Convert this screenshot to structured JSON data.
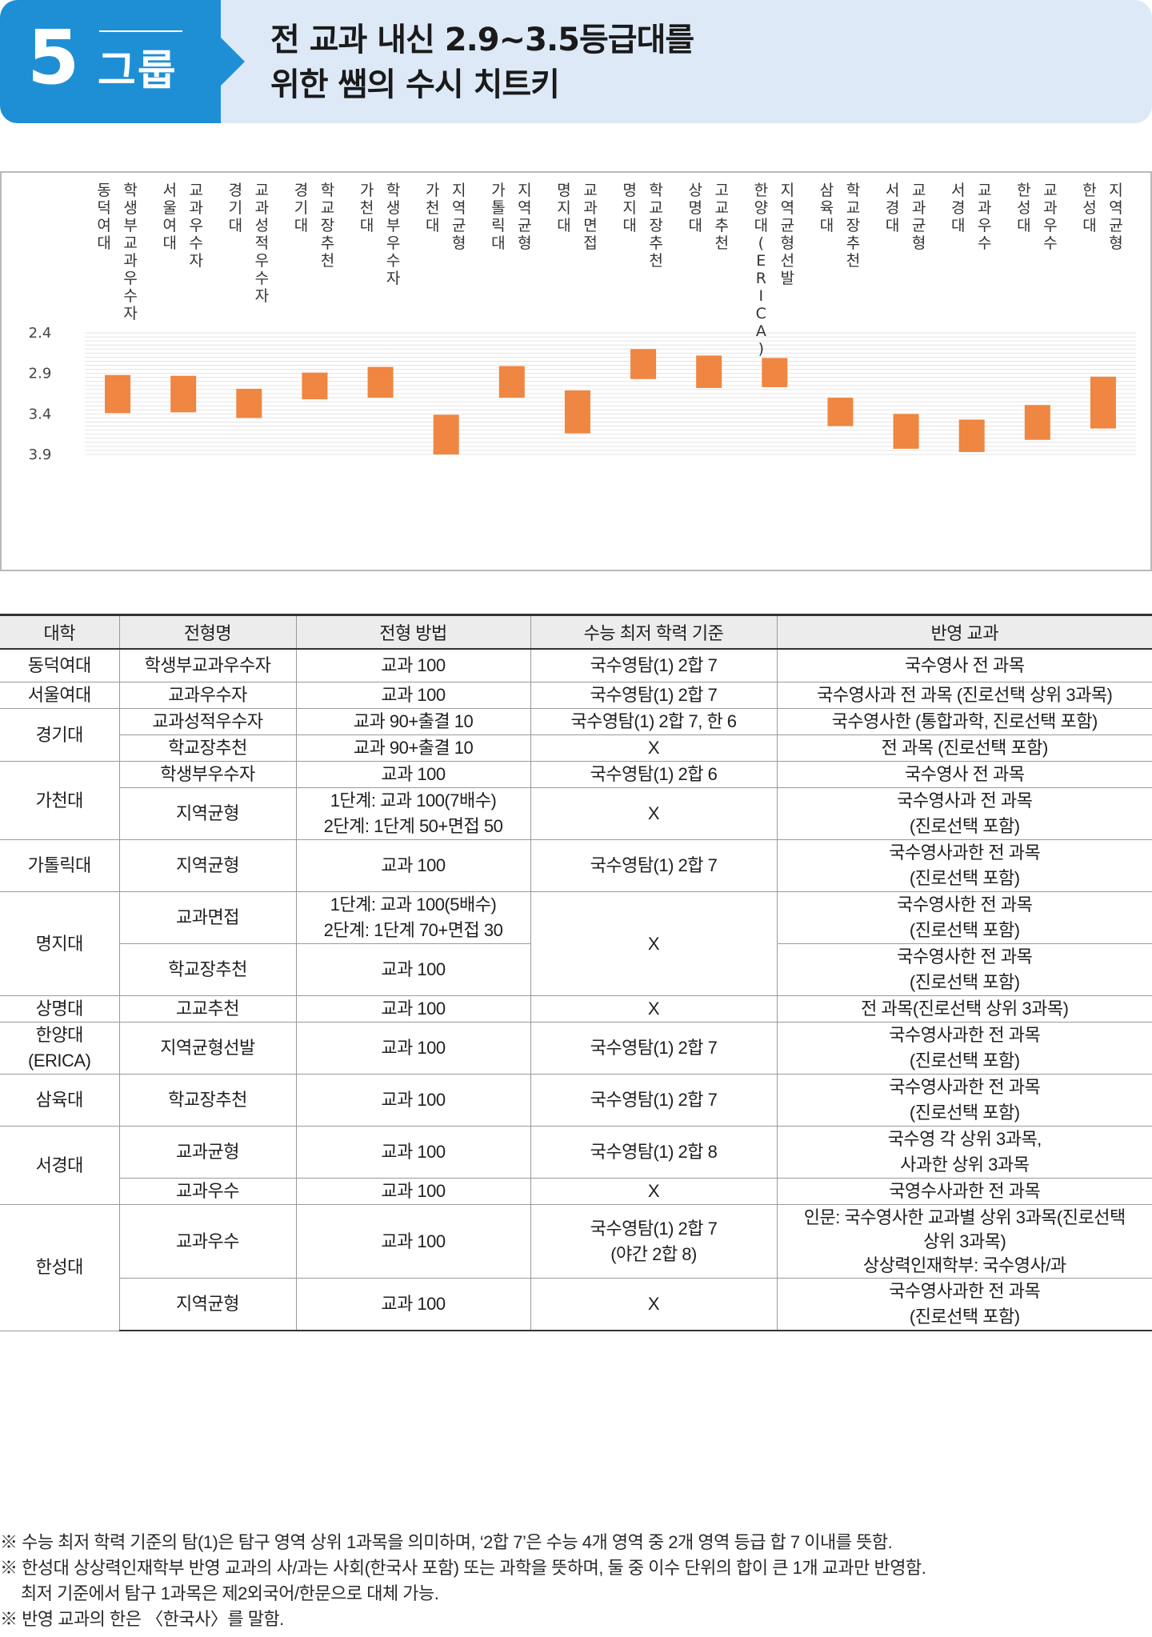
{
  "header": {
    "group_number": "5",
    "group_label": "그룹",
    "title_line1": "전 교과 내신 2.9~3.5등급대를",
    "title_line2": "위한 쌤의 수시 치트키"
  },
  "colors": {
    "accent": "#1f8fd5",
    "banner_bg": "#dde9f6",
    "bar": "#ef8641"
  },
  "chart_data": {
    "type": "bar",
    "subtype": "floating-range",
    "title": "",
    "xlabel": "",
    "ylabel": "",
    "y_inverted": true,
    "ylim": [
      2.4,
      3.9
    ],
    "yticks": [
      "2.4",
      "2.9",
      "3.4",
      "3.9"
    ],
    "grid": true,
    "categories": [
      "동덕여대 학생부교과우수자",
      "서울여대 교과우수자",
      "경기대 교과성적우수자",
      "경기대 학교장추천",
      "가천대 학생부우수자",
      "가천대 지역균형",
      "가톨릭대 지역균형",
      "명지대 교과면접",
      "명지대 학교장추천",
      "상명대 고교추천",
      "한양대(ERICA) 지역균형선발",
      "삼육대 학교장추천",
      "서경대 교과균형",
      "서경대 교과우수",
      "한성대 교과우수",
      "한성대 지역균형"
    ],
    "labels": [
      [
        "동덕여대",
        "학생부교과우수자"
      ],
      [
        "서울여대",
        "교과우수자"
      ],
      [
        "경기대",
        "교과성적우수자"
      ],
      [
        "경기대",
        "학교장추천"
      ],
      [
        "가천대",
        "학생부우수자"
      ],
      [
        "가천대",
        "지역균형"
      ],
      [
        "가톨릭대",
        "지역균형"
      ],
      [
        "명지대",
        "교과면접"
      ],
      [
        "명지대",
        "학교장추천"
      ],
      [
        "상명대",
        "고교추천"
      ],
      [
        "한양대(ERICA)",
        "지역균형선발"
      ],
      [
        "삼육대",
        "학교장추천"
      ],
      [
        "서경대",
        "교과균형"
      ],
      [
        "서경대",
        "교과우수"
      ],
      [
        "한성대",
        "교과우수"
      ],
      [
        "한성대",
        "지역균형"
      ]
    ],
    "series": [
      {
        "name": "min",
        "values": [
          2.92,
          2.93,
          3.09,
          2.89,
          2.82,
          3.41,
          2.81,
          3.11,
          2.6,
          2.68,
          2.71,
          3.2,
          3.4,
          3.47,
          3.29,
          2.94
        ]
      },
      {
        "name": "max",
        "values": [
          3.39,
          3.38,
          3.45,
          3.22,
          3.2,
          3.9,
          3.2,
          3.64,
          2.97,
          3.08,
          3.07,
          3.55,
          3.83,
          3.87,
          3.72,
          3.58
        ]
      }
    ]
  },
  "table": {
    "headers": [
      "대학",
      "전형명",
      "전형 방법",
      "수능 최저 학력 기준",
      "반영 교과"
    ],
    "rows": [
      [
        "동덕여대",
        "학생부교과우수자",
        "교과 100",
        "국수영탐(1) 2합 7",
        "국수영사 전 과목"
      ],
      [
        "서울여대",
        "교과우수자",
        "교과 100",
        "국수영탐(1) 2합 7",
        "국수영사과 전 과목 (진로선택 상위 3과목)"
      ],
      [
        "경기대",
        "교과성적우수자",
        "교과 90+출결 10",
        "국수영탐(1) 2합 7, 한 6",
        "국수영사한 (통합과학, 진로선택 포함)"
      ],
      [
        "",
        "학교장추천",
        "교과 90+출결 10",
        "X",
        "전 과목 (진로선택 포함)"
      ],
      [
        "가천대",
        "학생부우수자",
        "교과 100",
        "국수영탐(1) 2합 6",
        "국수영사 전 과목"
      ],
      [
        "",
        "지역균형",
        "1단계: 교과 100(7배수)\n2단계: 1단계 50+면접 50",
        "X",
        "국수영사과 전 과목\n(진로선택 포함)"
      ],
      [
        "가톨릭대",
        "지역균형",
        "교과 100",
        "국수영탐(1) 2합 7",
        "국수영사과한 전 과목\n(진로선택 포함)"
      ],
      [
        "명지대",
        "교과면접",
        "1단계: 교과 100(5배수)\n2단계: 1단계 70+면접 30",
        "X",
        "국수영사한 전 과목\n(진로선택 포함)"
      ],
      [
        "",
        "학교장추천",
        "교과 100",
        "",
        "국수영사한 전 과목\n(진로선택 포함)"
      ],
      [
        "상명대",
        "고교추천",
        "교과 100",
        "X",
        "전 과목(진로선택 상위 3과목)"
      ],
      [
        "한양대\n(ERICA)",
        "지역균형선발",
        "교과 100",
        "국수영탐(1) 2합 7",
        "국수영사과한 전 과목\n(진로선택 포함)"
      ],
      [
        "삼육대",
        "학교장추천",
        "교과 100",
        "국수영탐(1) 2합 7",
        "국수영사과한 전 과목\n(진로선택 포함)"
      ],
      [
        "서경대",
        "교과균형",
        "교과 100",
        "국수영탐(1) 2합 8",
        "국수영 각 상위 3과목,\n사과한 상위 3과목"
      ],
      [
        "",
        "교과우수",
        "교과 100",
        "X",
        "국영수사과한 전 과목"
      ],
      [
        "한성대",
        "교과우수",
        "교과 100",
        "국수영탐(1) 2합 7\n(야간 2합 8)",
        "인문: 국수영사한 교과별 상위 3과목(진로선택\n상위 3과목)\n상상력인재학부: 국수영사/과"
      ],
      [
        "",
        "지역균형",
        "교과 100",
        "X",
        "국수영사과한 전 과목\n(진로선택 포함)"
      ]
    ]
  },
  "notes": [
    "※ 수능 최저 학력 기준의 탐(1)은 탐구 영역 상위 1과목을 의미하며, ‘2합 7’은 수능 4개 영역 중 2개 영역 등급 합 7 이내를 뜻함.",
    "※ 한성대 상상력인재학부 반영 교과의 사/과는 사회(한국사 포함) 또는 과학을 뜻하며, 둘 중 이수 단위의 합이 큰 1개 교과만 반영함.",
    "최저 기준에서 탐구 1과목은 제2외국어/한문으로 대체 가능.",
    "※ 반영 교과의 한은 〈한국사〉를 말함."
  ]
}
